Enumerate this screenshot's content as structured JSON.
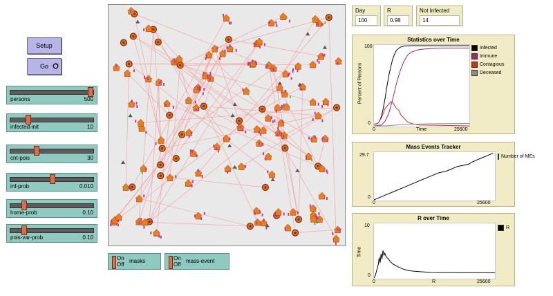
{
  "buttons": {
    "setup": "Setup",
    "go": "Go"
  },
  "sliders": [
    {
      "label": "persons",
      "value": "500",
      "fraction": 0.97
    },
    {
      "label": "infected-init",
      "value": "10",
      "fraction": 0.2
    },
    {
      "label": "cnt-pois",
      "value": "30",
      "fraction": 0.3
    },
    {
      "label": "inf-prob",
      "value": "0.010",
      "fraction": 0.5
    },
    {
      "label": "home-prob",
      "value": "0.10",
      "fraction": 0.15
    },
    {
      "label": "pois-var-prob",
      "value": "0.10",
      "fraction": 0.15
    }
  ],
  "monitors": {
    "day": {
      "label": "Day",
      "value": "100"
    },
    "r": {
      "label": "R",
      "value": "0.98"
    },
    "not_infected": {
      "label": "Not Infected",
      "value": "14"
    }
  },
  "switches": [
    {
      "on": "On",
      "off": "Off",
      "name": "masks"
    },
    {
      "on": "On",
      "off": "Off",
      "name": "mass-event"
    }
  ],
  "colors": {
    "infected": "#000000",
    "immune": "#a3227a",
    "contagious": "#d03020",
    "deceased": "#8a8a8a",
    "house": "#f07a1c",
    "person": "#c23b8f",
    "link": "#f3a6a6",
    "world_bg": "#e9e9e9"
  },
  "icons": {
    "go_loop": "forever-loop-icon",
    "house": "house-icon",
    "person": "person-icon",
    "target": "poi-target-icon",
    "triangle": "mass-event-triangle-icon"
  },
  "chart_data": [
    {
      "type": "line",
      "title": "Statistics over Time",
      "xlabel": "Time",
      "ylabel": "Percent of Persons",
      "xlim": [
        0,
        25600
      ],
      "ylim": [
        0,
        100
      ],
      "x_ticks": [
        "0",
        "25600"
      ],
      "y_ticks": [
        "0",
        "100"
      ],
      "legend_position": "right",
      "series": [
        {
          "name": "Infected",
          "color": "#000000",
          "points": [
            [
              0,
              2
            ],
            [
              1000,
              3
            ],
            [
              1500,
              6
            ],
            [
              2000,
              12
            ],
            [
              2500,
              22
            ],
            [
              3000,
              35
            ],
            [
              3500,
              50
            ],
            [
              4000,
              63
            ],
            [
              4500,
              74
            ],
            [
              5000,
              83
            ],
            [
              5500,
              89
            ],
            [
              6000,
              94
            ],
            [
              7000,
              98
            ],
            [
              8000,
              99.5
            ],
            [
              10000,
              100
            ],
            [
              25600,
              100
            ]
          ]
        },
        {
          "name": "Immune",
          "color": "#a3227a",
          "points": [
            [
              0,
              0
            ],
            [
              2000,
              1
            ],
            [
              3000,
              6
            ],
            [
              4000,
              16
            ],
            [
              5000,
              33
            ],
            [
              6000,
              52
            ],
            [
              7000,
              68
            ],
            [
              8000,
              80
            ],
            [
              9000,
              88
            ],
            [
              10000,
              92
            ],
            [
              12000,
              95
            ],
            [
              14000,
              96
            ],
            [
              18000,
              97
            ],
            [
              25600,
              97
            ]
          ]
        },
        {
          "name": "Contagious",
          "color": "#d03020",
          "points": [
            [
              0,
              2
            ],
            [
              1000,
              3
            ],
            [
              2000,
              10
            ],
            [
              3000,
              22
            ],
            [
              3800,
              26
            ],
            [
              4500,
              30
            ],
            [
              5000,
              29
            ],
            [
              5600,
              25
            ],
            [
              6000,
              22
            ],
            [
              6600,
              20
            ],
            [
              7200,
              14
            ],
            [
              8000,
              10
            ],
            [
              9000,
              5
            ],
            [
              10000,
              3
            ],
            [
              12000,
              1
            ],
            [
              25600,
              0
            ]
          ]
        },
        {
          "name": "Deceased",
          "color": "#8a8a8a",
          "points": [
            [
              0,
              0
            ],
            [
              3000,
              0
            ],
            [
              6000,
              1
            ],
            [
              10000,
              2
            ],
            [
              14000,
              2.5
            ],
            [
              25600,
              3
            ]
          ]
        }
      ]
    },
    {
      "type": "line",
      "title": "Mass Events Tracker",
      "xlabel": "",
      "ylabel": "",
      "xlim": [
        0,
        25600
      ],
      "ylim": [
        0,
        29.7
      ],
      "x_ticks": [
        "0",
        "25600"
      ],
      "y_ticks": [
        "0",
        "29.7"
      ],
      "legend_position": "right",
      "series": [
        {
          "name": "Number of MEs",
          "color": "#000000",
          "points": [
            [
              0,
              0
            ],
            [
              800,
              1
            ],
            [
              1600,
              2
            ],
            [
              2400,
              3
            ],
            [
              3200,
              4
            ],
            [
              4000,
              5
            ],
            [
              4800,
              6
            ],
            [
              5600,
              7
            ],
            [
              6400,
              8
            ],
            [
              7200,
              9
            ],
            [
              8000,
              10
            ],
            [
              8800,
              11
            ],
            [
              9600,
              12
            ],
            [
              10400,
              13
            ],
            [
              11200,
              14
            ],
            [
              12000,
              15
            ],
            [
              12800,
              16
            ],
            [
              13600,
              17
            ],
            [
              14400,
              17.5
            ],
            [
              15200,
              18
            ],
            [
              16000,
              19
            ],
            [
              16800,
              20
            ],
            [
              17600,
              21
            ],
            [
              18400,
              21.5
            ],
            [
              19200,
              22
            ],
            [
              20000,
              22.5
            ],
            [
              20800,
              24
            ],
            [
              21600,
              25
            ],
            [
              22400,
              26
            ],
            [
              23200,
              27
            ],
            [
              24000,
              28
            ],
            [
              24800,
              29
            ],
            [
              25200,
              29.5
            ]
          ]
        }
      ]
    },
    {
      "type": "line",
      "title": "R over Time",
      "xlabel": "R",
      "ylabel": "Time",
      "xlim": [
        0,
        25600
      ],
      "ylim": [
        0,
        10
      ],
      "x_ticks": [
        "0",
        "25600"
      ],
      "y_ticks": [
        "0",
        "10"
      ],
      "legend_position": "right",
      "series": [
        {
          "name": "R",
          "color": "#000000",
          "points": [
            [
              0,
              0
            ],
            [
              300,
              0.5
            ],
            [
              600,
              1.5
            ],
            [
              900,
              2.5
            ],
            [
              1100,
              3.8
            ],
            [
              1300,
              2.8
            ],
            [
              1500,
              4.5
            ],
            [
              1700,
              3.5
            ],
            [
              1900,
              5.1
            ],
            [
              2100,
              4.2
            ],
            [
              2300,
              4.6
            ],
            [
              2600,
              3.9
            ],
            [
              3000,
              3.6
            ],
            [
              3500,
              3.0
            ],
            [
              4000,
              2.6
            ],
            [
              5000,
              2.1
            ],
            [
              6000,
              1.7
            ],
            [
              7000,
              1.45
            ],
            [
              8000,
              1.3
            ],
            [
              10000,
              1.15
            ],
            [
              12000,
              1.06
            ],
            [
              15000,
              1.02
            ],
            [
              20000,
              1.0
            ],
            [
              25600,
              0.98
            ]
          ]
        }
      ]
    }
  ]
}
